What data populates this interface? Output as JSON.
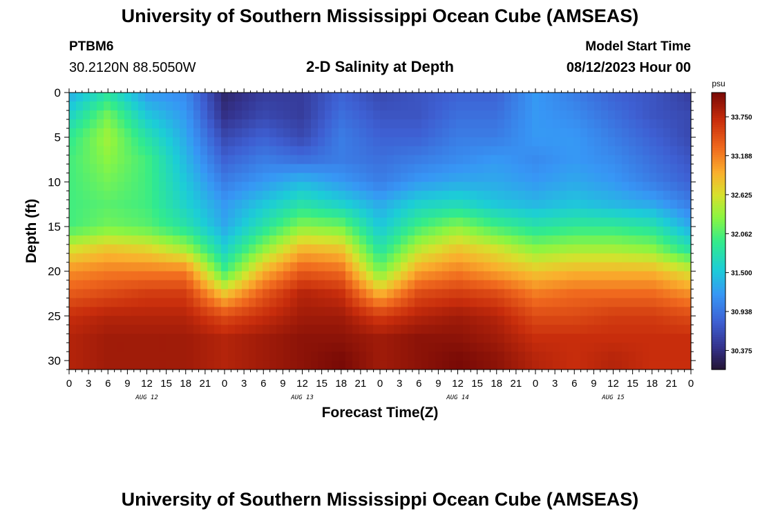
{
  "header": {
    "title": "University of Southern Mississippi Ocean Cube (AMSEAS)",
    "station": "PTBM6",
    "coords": "30.2120N  88.5050W",
    "plot_title": "2-D Salinity at Depth",
    "model_label": "Model Start Time",
    "model_date": "08/12/2023 Hour 00"
  },
  "footer": {
    "title": "University of Southern Mississippi Ocean Cube (AMSEAS)"
  },
  "chart_data": {
    "type": "heatmap",
    "title": "2-D Salinity at Depth",
    "xlabel": "Forecast Time(Z)",
    "ylabel": "Depth (ft)",
    "xlim": [
      0,
      96
    ],
    "ylim": [
      0,
      31
    ],
    "x_ticks": [
      0,
      3,
      6,
      9,
      12,
      15,
      18,
      21,
      24,
      27,
      30,
      33,
      36,
      39,
      42,
      45,
      48,
      51,
      54,
      57,
      60,
      63,
      66,
      69,
      72,
      75,
      78,
      81,
      84,
      87,
      90,
      93,
      96
    ],
    "x_tick_labels": [
      "0",
      "3",
      "6",
      "9",
      "12",
      "15",
      "18",
      "21",
      "0",
      "3",
      "6",
      "9",
      "12",
      "15",
      "18",
      "21",
      "0",
      "3",
      "6",
      "9",
      "12",
      "15",
      "18",
      "21",
      "0",
      "3",
      "6",
      "9",
      "12",
      "15",
      "18",
      "21",
      "0"
    ],
    "day_labels": [
      {
        "x": 12,
        "label": "AUG 12"
      },
      {
        "x": 36,
        "label": "AUG 13"
      },
      {
        "x": 60,
        "label": "AUG 14"
      },
      {
        "x": 84,
        "label": "AUG 15"
      }
    ],
    "y_ticks": [
      0,
      5,
      10,
      15,
      20,
      25,
      30
    ],
    "colorbar": {
      "unit": "psu",
      "min": 30.1,
      "max": 34.1,
      "ticks": [
        30.375,
        30.938,
        31.5,
        32.062,
        32.625,
        33.188,
        33.75
      ],
      "tick_labels": [
        "30.375",
        "30.938",
        "31.500",
        "32.062",
        "32.625",
        "33.188",
        "33.750"
      ]
    },
    "series": [
      {
        "name": "salinity_psu",
        "x": [
          0,
          6,
          12,
          18,
          24,
          30,
          36,
          42,
          48,
          54,
          60,
          66,
          72,
          78,
          84,
          90,
          96
        ],
        "depth_bands": [
          0,
          2.5,
          5,
          7.5,
          10,
          12.5,
          15,
          17.5,
          20,
          22.5,
          25,
          27.5,
          30,
          31
        ],
        "values": [
          [
            31.3,
            31.8,
            31.2,
            31.1,
            30.3,
            30.5,
            30.5,
            30.8,
            30.6,
            30.7,
            30.8,
            30.8,
            31.2,
            31.0,
            30.8,
            30.7,
            30.5
          ],
          [
            31.6,
            32.2,
            31.5,
            31.2,
            30.4,
            30.6,
            30.5,
            30.9,
            30.7,
            30.7,
            30.9,
            30.9,
            31.2,
            31.1,
            30.9,
            30.7,
            30.6
          ],
          [
            31.9,
            32.4,
            31.8,
            31.3,
            30.6,
            30.8,
            30.6,
            31.0,
            30.8,
            30.8,
            31.0,
            31.0,
            31.2,
            31.2,
            31.0,
            30.8,
            30.6
          ],
          [
            32.0,
            32.3,
            32.0,
            31.4,
            30.8,
            31.0,
            30.9,
            31.0,
            30.9,
            31.0,
            31.1,
            31.2,
            31.1,
            31.2,
            31.1,
            30.9,
            30.7
          ],
          [
            32.0,
            32.2,
            32.0,
            31.5,
            31.0,
            31.2,
            31.4,
            31.2,
            31.0,
            31.2,
            31.3,
            31.3,
            31.2,
            31.3,
            31.2,
            31.0,
            30.8
          ],
          [
            32.0,
            32.1,
            32.0,
            31.6,
            31.2,
            31.5,
            31.8,
            31.6,
            31.3,
            31.6,
            31.7,
            31.5,
            31.4,
            31.5,
            31.4,
            31.3,
            31.0
          ],
          [
            32.0,
            32.2,
            32.1,
            31.8,
            31.3,
            31.8,
            32.3,
            32.2,
            31.5,
            32.0,
            32.3,
            32.0,
            31.8,
            31.9,
            31.9,
            31.8,
            31.3
          ],
          [
            32.6,
            32.8,
            32.7,
            32.4,
            31.6,
            32.3,
            32.9,
            32.8,
            31.8,
            32.5,
            32.8,
            32.6,
            32.3,
            32.4,
            32.4,
            32.3,
            31.8
          ],
          [
            33.1,
            33.2,
            33.2,
            33.2,
            32.0,
            32.9,
            33.4,
            33.3,
            32.2,
            33.0,
            33.2,
            33.0,
            32.8,
            32.9,
            32.9,
            32.9,
            32.6
          ],
          [
            33.4,
            33.5,
            33.6,
            33.6,
            32.8,
            33.4,
            33.8,
            33.7,
            32.9,
            33.5,
            33.6,
            33.5,
            33.2,
            33.3,
            33.3,
            33.3,
            33.1
          ],
          [
            33.7,
            33.8,
            33.8,
            33.8,
            33.5,
            33.7,
            33.9,
            33.9,
            33.6,
            33.8,
            33.9,
            33.8,
            33.5,
            33.5,
            33.6,
            33.6,
            33.5
          ],
          [
            33.8,
            33.9,
            33.9,
            33.9,
            33.8,
            33.9,
            34.0,
            34.0,
            33.9,
            34.0,
            34.0,
            33.9,
            33.7,
            33.7,
            33.7,
            33.7,
            33.7
          ],
          [
            33.8,
            33.9,
            33.9,
            33.9,
            33.8,
            33.9,
            34.0,
            34.1,
            33.9,
            34.0,
            34.1,
            34.0,
            33.8,
            33.7,
            33.8,
            33.7,
            33.7
          ],
          [
            33.8,
            33.9,
            33.9,
            33.9,
            33.8,
            33.9,
            34.0,
            34.1,
            33.9,
            34.0,
            34.1,
            34.0,
            33.8,
            33.7,
            33.8,
            33.7,
            33.7
          ]
        ]
      }
    ]
  }
}
